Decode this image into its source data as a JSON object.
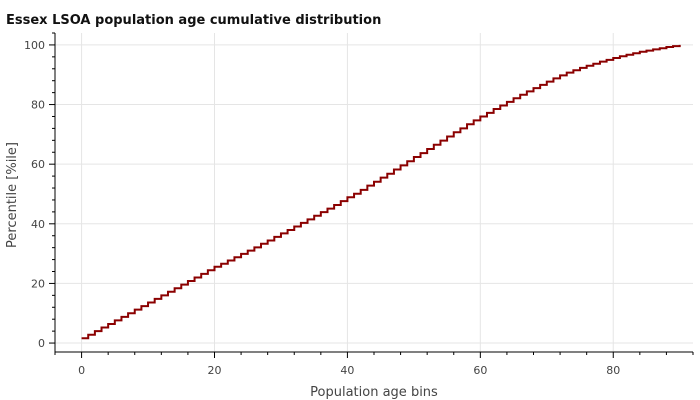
{
  "chart_data": {
    "type": "line",
    "step": true,
    "title": "Essex LSOA population age cumulative distribution",
    "xlabel": "Population age bins",
    "ylabel": "Percentile [%ile]",
    "xlim": [
      -4,
      92
    ],
    "ylim": [
      -3,
      104
    ],
    "xticks": [
      0,
      20,
      40,
      60,
      80
    ],
    "yticks": [
      0,
      20,
      40,
      60,
      80,
      100
    ],
    "grid": true,
    "series": [
      {
        "color": "#8b0000",
        "x": [
          0,
          1,
          2,
          3,
          4,
          5,
          6,
          7,
          8,
          9,
          10,
          11,
          12,
          13,
          14,
          15,
          16,
          17,
          18,
          19,
          20,
          21,
          22,
          23,
          24,
          25,
          26,
          27,
          28,
          29,
          30,
          31,
          32,
          33,
          34,
          35,
          36,
          37,
          38,
          39,
          40,
          41,
          42,
          43,
          44,
          45,
          46,
          47,
          48,
          49,
          50,
          51,
          52,
          53,
          54,
          55,
          56,
          57,
          58,
          59,
          60,
          61,
          62,
          63,
          64,
          65,
          66,
          67,
          68,
          69,
          70,
          71,
          72,
          73,
          74,
          75,
          76,
          77,
          78,
          79,
          80,
          81,
          82,
          83,
          84,
          85,
          86,
          87,
          88,
          89,
          90
        ],
        "y": [
          1.6,
          2.8,
          4.0,
          5.2,
          6.4,
          7.6,
          8.8,
          10.0,
          11.2,
          12.4,
          13.6,
          14.8,
          16.0,
          17.2,
          18.4,
          19.6,
          20.8,
          22.0,
          23.2,
          24.4,
          25.6,
          26.6,
          27.7,
          28.8,
          29.9,
          31.0,
          32.1,
          33.3,
          34.4,
          35.6,
          36.8,
          37.9,
          39.1,
          40.3,
          41.5,
          42.7,
          43.9,
          45.1,
          46.3,
          47.6,
          48.9,
          50.1,
          51.4,
          52.8,
          54.1,
          55.5,
          56.8,
          58.2,
          59.6,
          61.0,
          62.4,
          63.7,
          65.1,
          66.5,
          67.9,
          69.3,
          70.7,
          72.0,
          73.4,
          74.7,
          76.0,
          77.2,
          78.5,
          79.7,
          80.9,
          82.1,
          83.3,
          84.4,
          85.5,
          86.6,
          87.7,
          88.8,
          89.8,
          90.7,
          91.5,
          92.3,
          93.0,
          93.7,
          94.4,
          95.0,
          95.6,
          96.2,
          96.7,
          97.2,
          97.7,
          98.1,
          98.5,
          98.9,
          99.3,
          99.6,
          100.0
        ]
      }
    ]
  }
}
